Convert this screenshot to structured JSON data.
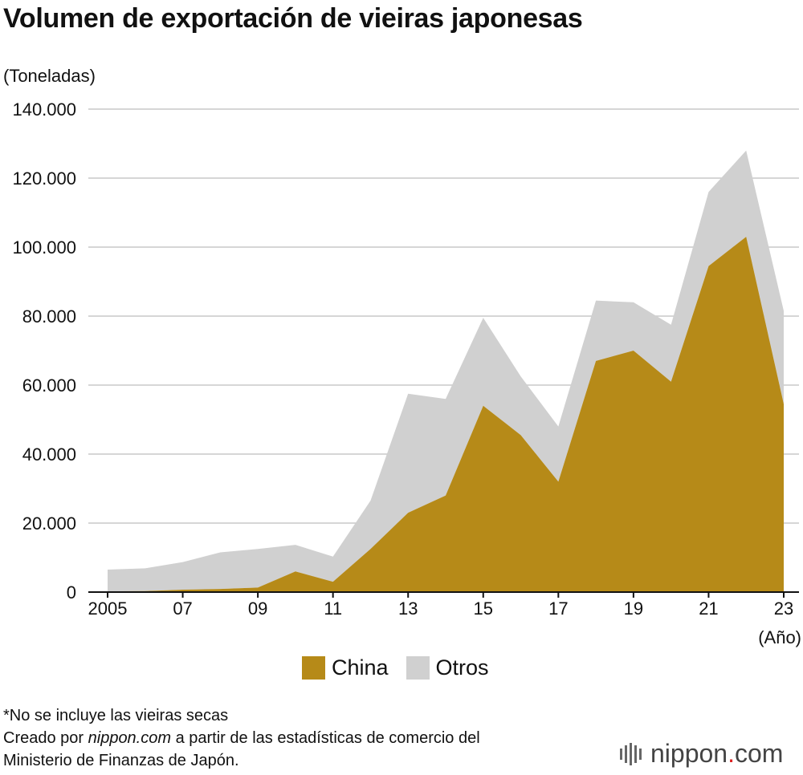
{
  "chart_data": {
    "type": "area",
    "stacked": true,
    "title": "Volumen de exportación de vieiras japonesas",
    "ylabel": "(Toneladas)",
    "xlabel": "(Año)",
    "x": [
      2005,
      2006,
      2007,
      2008,
      2009,
      2010,
      2011,
      2012,
      2013,
      2014,
      2015,
      2016,
      2017,
      2018,
      2019,
      2020,
      2021,
      2022,
      2023
    ],
    "x_tick_values": [
      2005,
      2007,
      2009,
      2011,
      2013,
      2015,
      2017,
      2019,
      2021,
      2023
    ],
    "x_tick_labels": [
      "2005",
      "07",
      "09",
      "11",
      "13",
      "15",
      "17",
      "19",
      "21",
      "23"
    ],
    "y_ticks": [
      "0",
      "20.000",
      "40.000",
      "60.000",
      "80.000",
      "100.000",
      "120.000",
      "140.000"
    ],
    "y_tick_values": [
      0,
      20000,
      40000,
      60000,
      80000,
      100000,
      120000,
      140000
    ],
    "ylim": [
      0,
      140000
    ],
    "grid": true,
    "legend_position": "bottom-center",
    "series": [
      {
        "name": "China",
        "color": "#b68a18",
        "values": [
          200,
          300,
          700,
          900,
          1300,
          6000,
          3000,
          12500,
          23000,
          28000,
          54000,
          45500,
          32000,
          67000,
          70000,
          61000,
          94500,
          103000,
          54500
        ]
      },
      {
        "name": "Otros",
        "color": "#d0d0d0",
        "values": [
          6300,
          6600,
          8000,
          10600,
          11200,
          7700,
          7300,
          14000,
          34500,
          28000,
          25500,
          17000,
          16000,
          17500,
          14000,
          16500,
          21500,
          25000,
          27000
        ]
      }
    ]
  },
  "legend": {
    "china": "China",
    "otros": "Otros"
  },
  "notes": {
    "line1": "*No se incluye las vieiras secas",
    "line2_prefix": "Creado por ",
    "line2_source": "nippon.com",
    "line2_suffix": " a partir de las estadísticas de comercio del",
    "line3": "Ministerio de Finanzas de Japón."
  },
  "logo": {
    "name": "nippon",
    "dot": ".",
    "tld": "com"
  }
}
